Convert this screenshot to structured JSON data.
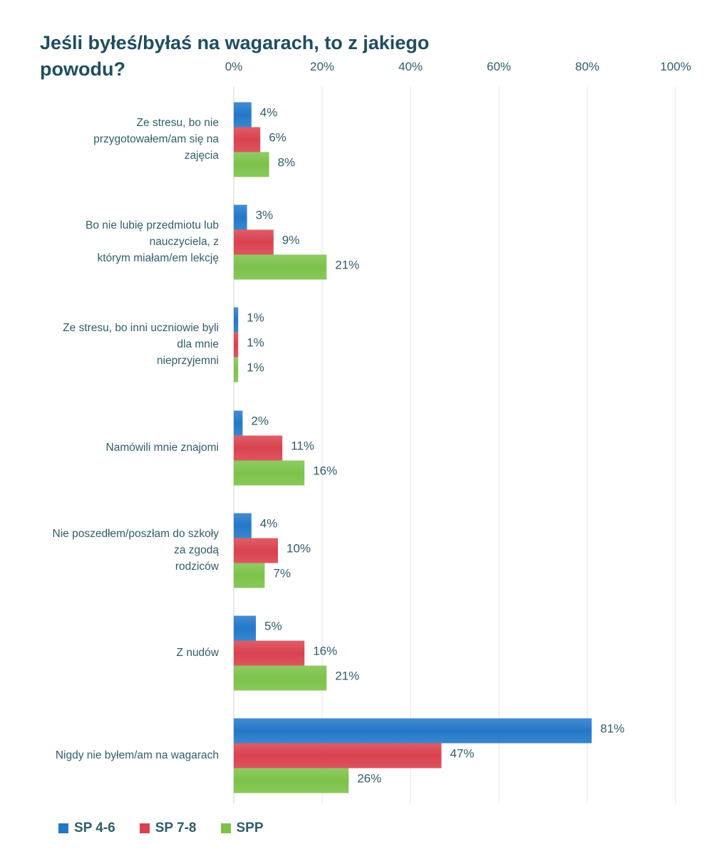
{
  "chart_data": {
    "type": "bar",
    "orientation": "horizontal",
    "title_lines": [
      "Jeśli byłeś/byłaś na wagarach, to z jakiego",
      "powodu?"
    ],
    "categories": [
      [
        "Ze stresu, bo nie",
        "przygotowałem/am się  na",
        "zajęcia"
      ],
      [
        "Bo nie lubię przedmiotu lub",
        "nauczyciela, z",
        "którym miałam/em lekcję"
      ],
      [
        "Ze stresu, bo inni uczniowie byli",
        "dla mnie",
        "nieprzyjemni"
      ],
      [
        "Namówili mnie znajomi"
      ],
      [
        "Nie poszedłem/poszłam do szkoły",
        "za zgodą",
        "rodziców"
      ],
      [
        "Z nudów"
      ],
      [
        "Nigdy nie byłem/am na wagarach"
      ]
    ],
    "series": [
      {
        "name": "SP 4-6",
        "color": "#2478c8",
        "values": [
          4,
          3,
          1,
          2,
          4,
          5,
          81
        ],
        "labels": [
          "4%",
          "3%",
          "1%",
          "2%",
          "4%",
          "5%",
          "81%"
        ]
      },
      {
        "name": "SP 7-8",
        "color": "#d9424e",
        "values": [
          6,
          9,
          1,
          11,
          10,
          16,
          47
        ],
        "labels": [
          "6%",
          "9%",
          "1%",
          "11%",
          "10%",
          "16%",
          "47%"
        ]
      },
      {
        "name": "SPP",
        "color": "#7cc24a",
        "values": [
          8,
          21,
          1,
          16,
          7,
          21,
          26
        ],
        "labels": [
          "8%",
          "21%",
          "1%",
          "16%",
          "7%",
          "21%",
          "26%"
        ]
      }
    ],
    "x_ticks": [
      "0%",
      "20%",
      "40%",
      "60%",
      "80%",
      "100%"
    ],
    "xlim": [
      0,
      100
    ],
    "tick_position": "top",
    "grid": true,
    "legend_position": "bottom-left"
  }
}
